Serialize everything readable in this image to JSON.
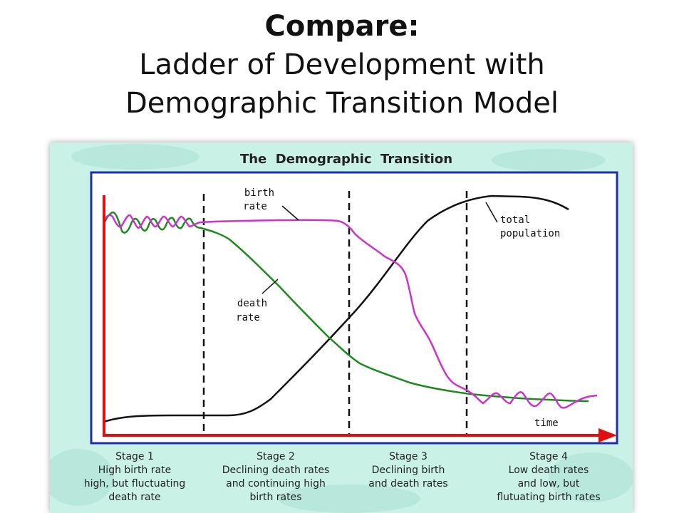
{
  "slide": {
    "title_bold": "Compare:",
    "title_line1": "Ladder of Development with",
    "title_line2": "Demographic Transition Model"
  },
  "diagram": {
    "title": "The  Demographic  Transition",
    "labels": {
      "birth_rate": [
        "birth",
        "rate"
      ],
      "death_rate": [
        "death",
        "rate"
      ],
      "total_population": [
        "total",
        "population"
      ],
      "time_axis": "time"
    },
    "stages": [
      {
        "name": "Stage 1",
        "lines": [
          "High birth rate",
          "high, but fluctuating",
          "death rate"
        ]
      },
      {
        "name": "Stage 2",
        "lines": [
          "Declining death rates",
          "and continuing high",
          "birth rates"
        ]
      },
      {
        "name": "Stage 3",
        "lines": [
          "Declining birth",
          "and death rates"
        ]
      },
      {
        "name": "Stage 4",
        "lines": [
          "Low death rates",
          "and low, but",
          "flutuating birth rates"
        ]
      }
    ],
    "colors": {
      "background": "#c9f1e6",
      "chart_panel": "#ffffff",
      "panel_border": "#1f2fa8",
      "axis": "#e01010",
      "birth_rate": "#cc33cc",
      "death_rate": "#1e8a1e",
      "total_population": "#111111"
    }
  }
}
